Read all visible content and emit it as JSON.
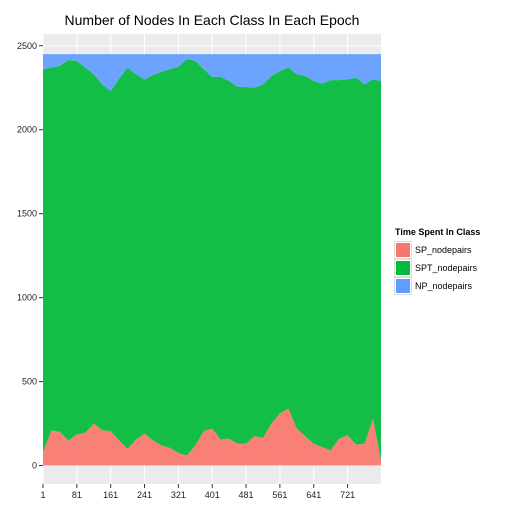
{
  "chart_data": {
    "type": "area",
    "title": "Number of Nodes In Each Class In Each Epoch",
    "xlabel": "",
    "ylabel": "",
    "xlim": [
      1,
      800
    ],
    "ylim": [
      -110,
      2570
    ],
    "x_ticks": [
      1,
      81,
      161,
      241,
      321,
      401,
      481,
      561,
      641,
      721
    ],
    "y_ticks": [
      0,
      500,
      1000,
      1500,
      2000,
      2500
    ],
    "stacked": true,
    "total_nodes": 2450,
    "legend_title": "Time Spent In Class",
    "legend_position": "right",
    "grid": true,
    "x": [
      1,
      21,
      41,
      61,
      81,
      101,
      121,
      141,
      161,
      181,
      201,
      221,
      241,
      261,
      281,
      301,
      321,
      341,
      361,
      381,
      401,
      421,
      441,
      461,
      481,
      501,
      521,
      541,
      561,
      581,
      601,
      621,
      641,
      661,
      681,
      701,
      721,
      741,
      761,
      781,
      800
    ],
    "series": [
      {
        "name": "SP_nodepairs",
        "color": "#f8766d",
        "values": [
          80,
          210,
          200,
          150,
          185,
          195,
          250,
          210,
          205,
          150,
          100,
          155,
          190,
          150,
          120,
          105,
          75,
          60,
          120,
          205,
          220,
          155,
          160,
          130,
          130,
          175,
          165,
          250,
          310,
          340,
          220,
          175,
          130,
          110,
          90,
          160,
          180,
          125,
          130,
          280,
          30
        ]
      },
      {
        "name": "SPT_nodepairs",
        "color": "#00ba38",
        "values": [
          2280,
          2160,
          2180,
          2265,
          2225,
          2175,
          2080,
          2060,
          2025,
          2155,
          2270,
          2175,
          2110,
          2175,
          2225,
          2255,
          2300,
          2360,
          2290,
          2155,
          2095,
          2160,
          2130,
          2125,
          2125,
          2075,
          2105,
          2070,
          2040,
          2030,
          2110,
          2145,
          2160,
          2165,
          2205,
          2135,
          2120,
          2185,
          2140,
          2020,
          2260
        ]
      },
      {
        "name": "NP_nodepairs",
        "color": "#619cff",
        "values": [
          90,
          80,
          70,
          35,
          40,
          80,
          120,
          180,
          220,
          145,
          80,
          120,
          150,
          125,
          105,
          90,
          75,
          30,
          40,
          90,
          135,
          135,
          160,
          195,
          195,
          200,
          180,
          130,
          100,
          80,
          120,
          130,
          160,
          175,
          155,
          155,
          150,
          140,
          180,
          150,
          160
        ]
      }
    ]
  }
}
